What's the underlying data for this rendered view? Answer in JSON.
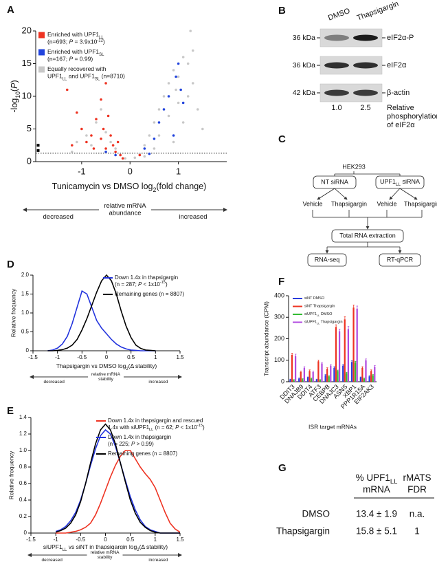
{
  "chart_data": [
    {
      "type": "scatter",
      "panel": "A",
      "ylabel": [
        "-log",
        {
          "sub": "10"
        },
        "(",
        {
          "i": "P"
        },
        ")"
      ],
      "xlabel": [
        "Tunicamycin vs DMSO log",
        {
          "sub": "2"
        },
        "(fold change)"
      ],
      "xlim": [
        -1.95,
        2.0
      ],
      "ylim": [
        0,
        20
      ],
      "xticks": [
        -1,
        0,
        1
      ],
      "yticks": [
        0,
        5,
        10,
        15,
        20
      ],
      "threshold": 1.3,
      "axis_note": {
        "center": [
          "relative mRNA",
          "abundance"
        ],
        "left": "decreased",
        "right": "increased"
      },
      "series": [
        {
          "name": [
            [
              "Enriched with UPF1",
              {
                "sub": "LL"
              }
            ],
            [
              "(n=693; ",
              {
                "i": "P"
              },
              " = 3.9x10",
              {
                "sup": "-12"
              },
              ")"
            ]
          ],
          "color": "#ee3322",
          "x": [
            -1.3,
            -1.1,
            -1.0,
            -0.9,
            -0.8,
            -0.7,
            -0.6,
            -0.55,
            -0.5,
            -0.45,
            -0.4,
            -0.35,
            -0.3,
            -0.25,
            -0.2,
            -0.6,
            -0.75,
            -1.2,
            -0.15,
            0.2,
            -0.5
          ],
          "values": [
            11,
            7.5,
            5,
            3,
            4,
            6.5,
            3.5,
            5,
            2,
            7,
            4,
            2.5,
            1.5,
            3,
            1,
            9.5,
            2,
            2.5,
            0.5,
            1,
            12
          ]
        },
        {
          "name": [
            [
              "Enriched with UPF1",
              {
                "sub": "SL"
              }
            ],
            [
              "(n=167; ",
              {
                "i": "P"
              },
              " = 0.99)"
            ]
          ],
          "color": "#2244dd",
          "x": [
            -0.5,
            -0.3,
            0.3,
            0.5,
            0.6,
            0.7,
            0.8,
            0.9,
            1.0,
            1.05,
            1.1,
            0.95,
            0.4
          ],
          "values": [
            1.5,
            1,
            2,
            3.5,
            6,
            8,
            10,
            4,
            15,
            11,
            9,
            13,
            1.2
          ]
        },
        {
          "name": [
            [
              "Equally recovered with"
            ],
            [
              "UPF1",
              {
                "sub": "LL"
              },
              " and UPF1",
              {
                "sub": "SL"
              },
              " (n=8710)"
            ]
          ],
          "color": "#c8c8c8",
          "x": [
            -1.1,
            -0.9,
            -0.7,
            -0.5,
            -0.4,
            -0.3,
            -0.2,
            -0.1,
            0.1,
            0.2,
            0.3,
            0.4,
            0.5,
            0.6,
            0.7,
            0.8,
            0.9,
            1.0,
            1.1,
            1.2,
            1.3,
            1.4,
            1.0,
            0.8,
            0.6,
            1.2,
            -0.6,
            -0.8,
            -1.2,
            0.5,
            1.5,
            1.1,
            0.9,
            -0.5,
            0.3,
            1.3,
            1.25,
            0.95
          ],
          "values": [
            3,
            4,
            6,
            4.5,
            3,
            2,
            1,
            0.5,
            0.6,
            1.2,
            2.5,
            4,
            6,
            8,
            10,
            12,
            14,
            13,
            16,
            15,
            12,
            8,
            9,
            7,
            4,
            10,
            8,
            2.5,
            1.5,
            2,
            5,
            6,
            3,
            1.5,
            0.8,
            17,
            20,
            11
          ]
        },
        {
          "color": "#000000",
          "x": [
            -1.9,
            -1.9
          ],
          "values": [
            2.5,
            1.7
          ]
        }
      ]
    },
    {
      "type": "line",
      "panel": "D",
      "ylabel": "Relative frequency",
      "xlabel": [
        "Thapsigargin vs DMSO log",
        {
          "sub": "2"
        },
        "(Δ stability)"
      ],
      "xlim": [
        -1.5,
        1.5
      ],
      "ylim": [
        0,
        2.0
      ],
      "xticks": [
        -1.5,
        -1,
        -0.5,
        0,
        0.5,
        1,
        1.5
      ],
      "yticks": [
        0,
        0.5,
        {
          "value": 1,
          "label": "1.0"
        },
        1.5,
        {
          "value": 2,
          "label": "2.0"
        }
      ],
      "axis_note": {
        "center": [
          "relative mRNA",
          "stability"
        ],
        "left": "decreased",
        "right": "increased"
      },
      "x": [
        -1.2,
        -1.1,
        -1.0,
        -0.9,
        -0.8,
        -0.7,
        -0.6,
        -0.5,
        -0.4,
        -0.3,
        -0.2,
        -0.1,
        0.0,
        0.1,
        0.2,
        0.3,
        0.4,
        0.5,
        0.6,
        0.7,
        0.8,
        0.9,
        1.0
      ],
      "series": [
        {
          "name": [
            [
              "Down 1.4x in thapsigargin"
            ],
            [
              "(n = 287; ",
              {
                "i": "P"
              },
              " < 1x10",
              {
                "sup": "-15"
              },
              ")"
            ]
          ],
          "color": "#2233dd",
          "values": [
            0,
            0.02,
            0.07,
            0.18,
            0.38,
            0.72,
            1.15,
            1.58,
            1.5,
            1.15,
            0.8,
            0.6,
            0.45,
            0.3,
            0.18,
            0.1,
            0.05,
            0.02,
            0.01,
            0,
            0,
            0,
            0
          ]
        },
        {
          "name": [
            [
              "Remaining genes (n = 8807)"
            ]
          ],
          "color": "#000000",
          "values": [
            0,
            0,
            0.01,
            0.03,
            0.07,
            0.15,
            0.3,
            0.55,
            0.85,
            1.2,
            1.55,
            1.85,
            2.0,
            1.85,
            1.5,
            1.05,
            0.65,
            0.35,
            0.15,
            0.06,
            0.02,
            0.01,
            0
          ]
        }
      ]
    },
    {
      "type": "line",
      "panel": "E",
      "ylabel": "Relative frequency",
      "xlabel": [
        "siUPF1",
        {
          "sub": "LL"
        },
        " vs siNT in thapsigargin log",
        {
          "sub": "2"
        },
        "(Δ stability)"
      ],
      "xlim": [
        -1.5,
        1.5
      ],
      "ylim": [
        0,
        1.4
      ],
      "xticks": [
        -1.5,
        -1,
        -0.5,
        0,
        0.5,
        1,
        1.5
      ],
      "yticks": [
        0,
        0.2,
        0.4,
        0.6,
        0.8,
        {
          "value": 1,
          "label": "1.0"
        },
        1.2,
        1.4
      ],
      "axis_note": {
        "center": [
          "relative mRNA",
          "stability"
        ],
        "left": "decreased",
        "right": "increased"
      },
      "x": [
        -1.0,
        -0.9,
        -0.8,
        -0.7,
        -0.6,
        -0.5,
        -0.4,
        -0.3,
        -0.2,
        -0.1,
        0.0,
        0.1,
        0.2,
        0.3,
        0.4,
        0.5,
        0.6,
        0.7,
        0.8,
        0.9,
        1.0,
        1.1,
        1.2,
        1.3,
        1.4,
        1.5
      ],
      "series": [
        {
          "name": [
            [
              "Down 1.4x in thapsigargin and rescued"
            ],
            [
              "1.4x with siUPF1",
              {
                "sub": "LL"
              },
              " (n = 62; ",
              {
                "i": "P"
              },
              " < 1x10",
              {
                "sup": "-15"
              },
              ")"
            ]
          ],
          "color": "#ee3322",
          "values": [
            0,
            0,
            0,
            0.01,
            0.02,
            0.04,
            0.07,
            0.12,
            0.22,
            0.36,
            0.52,
            0.68,
            0.82,
            0.93,
            1.0,
            1.0,
            0.9,
            0.8,
            0.72,
            0.65,
            0.55,
            0.4,
            0.25,
            0.12,
            0.05,
            0.01
          ]
        },
        {
          "name": [
            [
              "Down 1.4x in thapsigargin"
            ],
            [
              "(n = 225; ",
              {
                "i": "P"
              },
              " > 0.99)"
            ]
          ],
          "color": "#2233dd",
          "values": [
            0.02,
            0.04,
            0.08,
            0.15,
            0.25,
            0.4,
            0.6,
            0.82,
            1.02,
            1.18,
            1.25,
            1.2,
            1.05,
            0.85,
            0.64,
            0.44,
            0.28,
            0.16,
            0.08,
            0.04,
            0.02,
            0,
            0,
            0,
            0,
            0
          ]
        },
        {
          "name": [
            [
              "Remaining genes (n = 8807)"
            ]
          ],
          "color": "#000000",
          "values": [
            0.01,
            0.03,
            0.06,
            0.12,
            0.22,
            0.38,
            0.6,
            0.85,
            1.08,
            1.25,
            1.32,
            1.25,
            1.08,
            0.85,
            0.62,
            0.4,
            0.24,
            0.13,
            0.07,
            0.03,
            0.01,
            0,
            0,
            0,
            0,
            0
          ]
        }
      ]
    },
    {
      "type": "bar",
      "panel": "F",
      "ylabel": "Transcript abundance (CPM)",
      "xlabel": "ISR target mRNAs",
      "ylim": [
        0,
        400
      ],
      "yticks": [
        0,
        100,
        200,
        300,
        400
      ],
      "categories": [
        "DDIT3",
        "DNAJB9",
        "DDIT4",
        "ATF3",
        "CEBPB",
        "DNAJC3",
        "ASNS",
        "XBP1",
        "PPP1R15A",
        "EIF2AK3"
      ],
      "series": [
        {
          "name": [
            [
              "siNT DMSO"
            ]
          ],
          "color": "#2a3bdc",
          "values": [
            10,
            15,
            20,
            10,
            30,
            65,
            75,
            92,
            20,
            25
          ],
          "errors": [
            2,
            2,
            2,
            2,
            3,
            5,
            5,
            5,
            2,
            3
          ]
        },
        {
          "name": [
            [
              "siNT Thapsigargin"
            ]
          ],
          "color": "#ee3322",
          "values": [
            125,
            45,
            50,
            95,
            60,
            255,
            290,
            345,
            65,
            50
          ],
          "errors": [
            8,
            5,
            5,
            5,
            5,
            10,
            12,
            12,
            5,
            5
          ]
        },
        {
          "name": [
            [
              "siUPF1",
              {
                "sub": "LL"
              },
              " DMSO"
            ]
          ],
          "color": "#33bb33",
          "values": [
            8,
            12,
            15,
            8,
            25,
            50,
            40,
            90,
            15,
            30
          ],
          "errors": [
            2,
            2,
            2,
            2,
            3,
            4,
            4,
            5,
            2,
            3
          ]
        },
        {
          "name": [
            [
              "siUPF1",
              {
                "sub": "LL"
              },
              " Thapsigargin"
            ]
          ],
          "color": "#b04ae0",
          "values": [
            120,
            65,
            45,
            85,
            75,
            235,
            245,
            340,
            100,
            70
          ],
          "errors": [
            8,
            5,
            5,
            5,
            5,
            10,
            12,
            12,
            6,
            5
          ]
        }
      ]
    }
  ],
  "blot": {
    "panel": "B",
    "columns": [
      "DMSO",
      "Thapsigargin"
    ],
    "rows": [
      {
        "mw": "36 kDa",
        "protein": "eIF2α-P"
      },
      {
        "mw": "36 kDa",
        "protein": "eIF2α"
      },
      {
        "mw": "42 kDa",
        "protein": "β-actin"
      }
    ],
    "quantification": [
      "1.0",
      "2.5"
    ],
    "caption": [
      "Relative",
      "phosphorylation",
      "of eIF2α"
    ]
  },
  "diagram": {
    "panel": "C",
    "nodes": [
      {
        "label": "HEK293"
      },
      {
        "label": "NT siRNA"
      },
      {
        "label": [
          "UPF1",
          {
            "sub": "LL"
          },
          " siRNA"
        ]
      },
      {
        "label": "Vehicle"
      },
      {
        "label": "Thapsigargin"
      },
      {
        "label": "Vehicle"
      },
      {
        "label": "Thapsigargin"
      },
      {
        "label": "Total RNA extraction"
      },
      {
        "label": "RNA-seq"
      },
      {
        "label": "RT-qPCR"
      }
    ]
  },
  "table": {
    "panel": "G",
    "header": [
      [
        [
          "% UPF1",
          {
            "sub": "LL"
          }
        ],
        [
          "mRNA"
        ]
      ],
      [
        [
          "rMATS"
        ],
        [
          "FDR"
        ]
      ]
    ],
    "rows": [
      [
        "DMSO",
        "13.4 ± 1.9",
        "n.a."
      ],
      [
        "Thapsigargin",
        "15.8 ± 5.1",
        "1"
      ]
    ]
  }
}
